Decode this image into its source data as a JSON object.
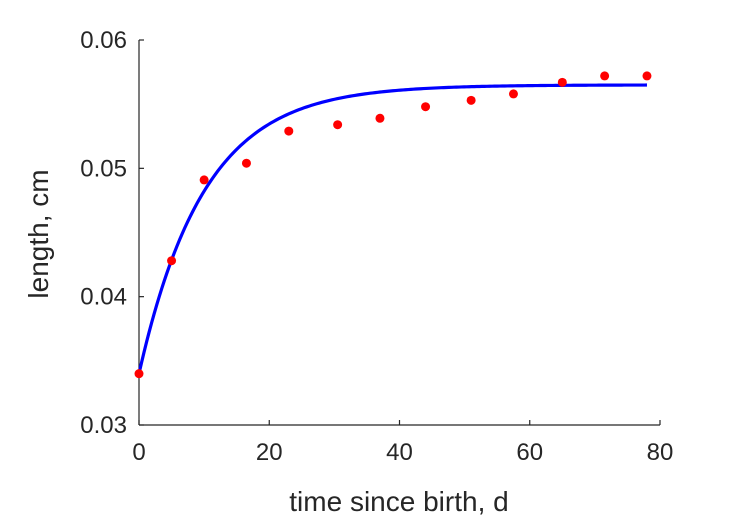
{
  "chart_data": {
    "type": "scatter",
    "title": "",
    "xlabel": "time since birth, d",
    "ylabel": "length, cm",
    "xlim": [
      0,
      80
    ],
    "ylim": [
      0.03,
      0.06
    ],
    "xticks": [
      "0",
      "20",
      "40",
      "60",
      "80"
    ],
    "yticks": [
      "0.03",
      "0.04",
      "0.05",
      "0.06"
    ],
    "grid": false,
    "legend": "none",
    "series": [
      {
        "kind": "points",
        "color": "#ff0000",
        "x": [
          0,
          5,
          10,
          16.5,
          23,
          30.5,
          37,
          44,
          51,
          57.5,
          65,
          71.5,
          78
        ],
        "y": [
          0.034,
          0.0428,
          0.0491,
          0.0504,
          0.0529,
          0.0534,
          0.0539,
          0.0548,
          0.0553,
          0.0558,
          0.0567,
          0.0572,
          0.0572
        ]
      },
      {
        "kind": "line",
        "color": "#0000ff",
        "model": {
          "y0": 0.034,
          "yinf": 0.0565,
          "rate": 0.1
        },
        "x_range": [
          0,
          78
        ]
      }
    ]
  }
}
